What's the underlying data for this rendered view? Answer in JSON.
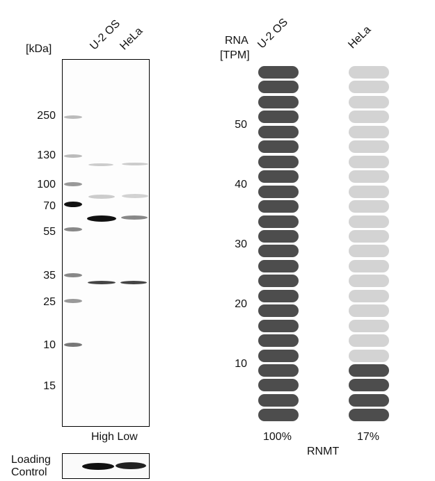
{
  "western_blot": {
    "unit_label": "[kDa]",
    "lanes": [
      "U-2 OS",
      "HeLa"
    ],
    "markers": [
      "250",
      "130",
      "100",
      "70",
      "55",
      "35",
      "25",
      "10",
      "15"
    ],
    "expression_labels": "High Low",
    "loading_control_label_1": "Loading",
    "loading_control_label_2": "Control"
  },
  "chart_data": {
    "type": "bar",
    "title": "RNMT",
    "ylabel_1": "RNA",
    "ylabel_2": "[TPM]",
    "categories": [
      "U-2 OS",
      "HeLa"
    ],
    "values_percent": [
      100,
      17
    ],
    "value_labels": [
      "100%",
      "17%"
    ],
    "ticks": [
      "50",
      "40",
      "30",
      "20",
      "10"
    ],
    "segments_total": 24,
    "colors": {
      "filled": "#4d4d4d",
      "empty": "#d3d3d3"
    }
  }
}
